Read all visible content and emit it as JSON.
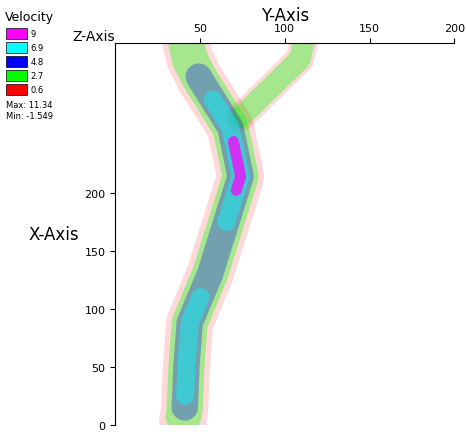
{
  "chart_data": {
    "type": "isosurface",
    "legend_title": "Velocity",
    "max_label": "Max: 11.34",
    "min_label": "Min: -1.549",
    "x_label": "X-Axis",
    "y_label": "Y-Axis",
    "z_label": "Z-Axis",
    "xlim": [
      0,
      329
    ],
    "xticks": [
      0,
      50,
      100,
      150,
      200
    ],
    "ylim": [
      0,
      200
    ],
    "yticks": [
      50,
      100,
      150,
      200
    ],
    "centerline": {
      "x": [
        5,
        13,
        50,
        88,
        130,
        172,
        214,
        256,
        298,
        315,
        329
      ],
      "y": [
        40,
        41,
        42,
        44,
        56,
        65,
        74,
        68,
        50,
        44,
        42
      ]
    },
    "branch": {
      "x": [
        265,
        295,
        315,
        329
      ],
      "y": [
        74,
        95,
        109,
        111
      ]
    },
    "levels": [
      {
        "value": 0.6,
        "color": "#ff0000",
        "x_ranges": [
          [
            0,
            329
          ]
        ],
        "branch": true
      },
      {
        "value": 2.7,
        "color": "#00ff00",
        "x_ranges": [
          [
            8,
            329
          ]
        ],
        "branch": true
      },
      {
        "value": 4.8,
        "color": "#0000ff",
        "x_ranges": [
          [
            15,
            300
          ]
        ],
        "branch": false
      },
      {
        "value": 6.9,
        "color": "#00ffff",
        "x_ranges": [
          [
            25,
            110
          ],
          [
            175,
            280
          ]
        ],
        "branch": false
      },
      {
        "value": 9,
        "color": "#ff00ff",
        "x_ranges": [
          [
            202,
            244
          ]
        ],
        "branch": false
      }
    ]
  }
}
